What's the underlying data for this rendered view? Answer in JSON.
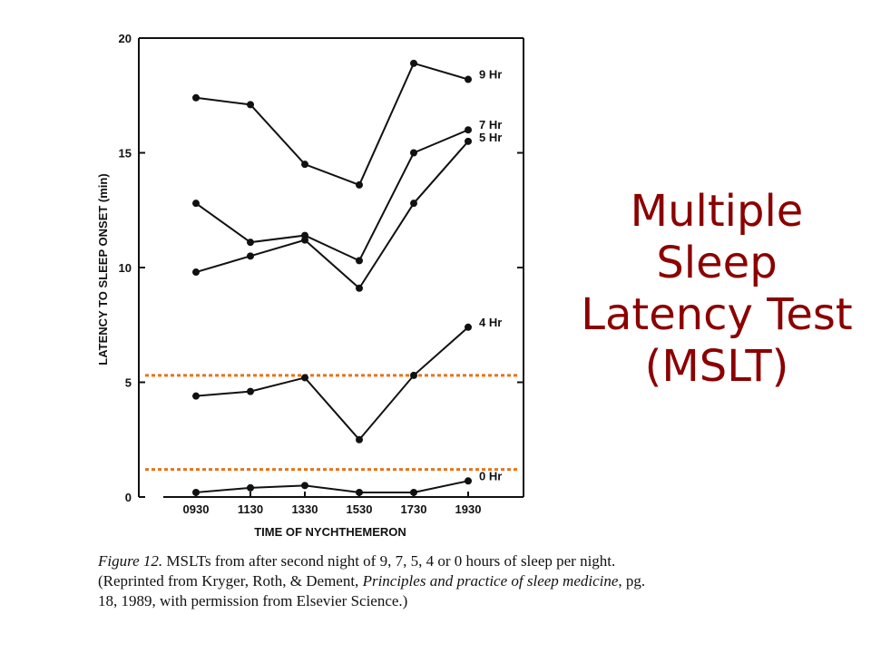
{
  "slide_title": [
    "Multiple",
    "Sleep",
    "Latency Test",
    "(MSLT)"
  ],
  "caption": {
    "figure_label": "Figure 12.",
    "text_1": " MSLTs from after second night of 9, 7, 5, 4 or 0 hours of sleep per night. (Reprinted from Kryger, Roth, & Dement, ",
    "book_title": "Principles and practice of sleep medicine",
    "text_2": ", pg. 18, 1989, with permission from Elsevier Science.)"
  },
  "colors": {
    "title": "#8b0000",
    "line": "#111111",
    "threshold": "#e8731a"
  },
  "chart_data": {
    "type": "line",
    "title": "",
    "xlabel": "TIME OF NYCHTHEMERON",
    "ylabel": "LATENCY TO SLEEP ONSET (min)",
    "categories": [
      "0930",
      "1130",
      "1330",
      "1530",
      "1730",
      "1930"
    ],
    "ylim": [
      0,
      20
    ],
    "yticks": [
      "0",
      "5",
      "10",
      "15",
      "20"
    ],
    "grid": false,
    "series": [
      {
        "name": "9 Hr",
        "values": [
          17.4,
          17.1,
          14.5,
          13.6,
          18.9,
          18.2
        ]
      },
      {
        "name": "7 Hr",
        "values": [
          12.8,
          11.1,
          11.4,
          10.3,
          15.0,
          16.0
        ]
      },
      {
        "name": "5 Hr",
        "values": [
          9.8,
          10.5,
          11.2,
          9.1,
          12.8,
          15.5
        ]
      },
      {
        "name": "4 Hr",
        "values": [
          4.4,
          4.6,
          5.2,
          2.5,
          5.3,
          7.4
        ]
      },
      {
        "name": "0 Hr",
        "values": [
          0.2,
          0.4,
          0.5,
          0.2,
          0.2,
          0.7
        ]
      }
    ],
    "reference_lines": [
      5.3,
      1.2
    ]
  }
}
